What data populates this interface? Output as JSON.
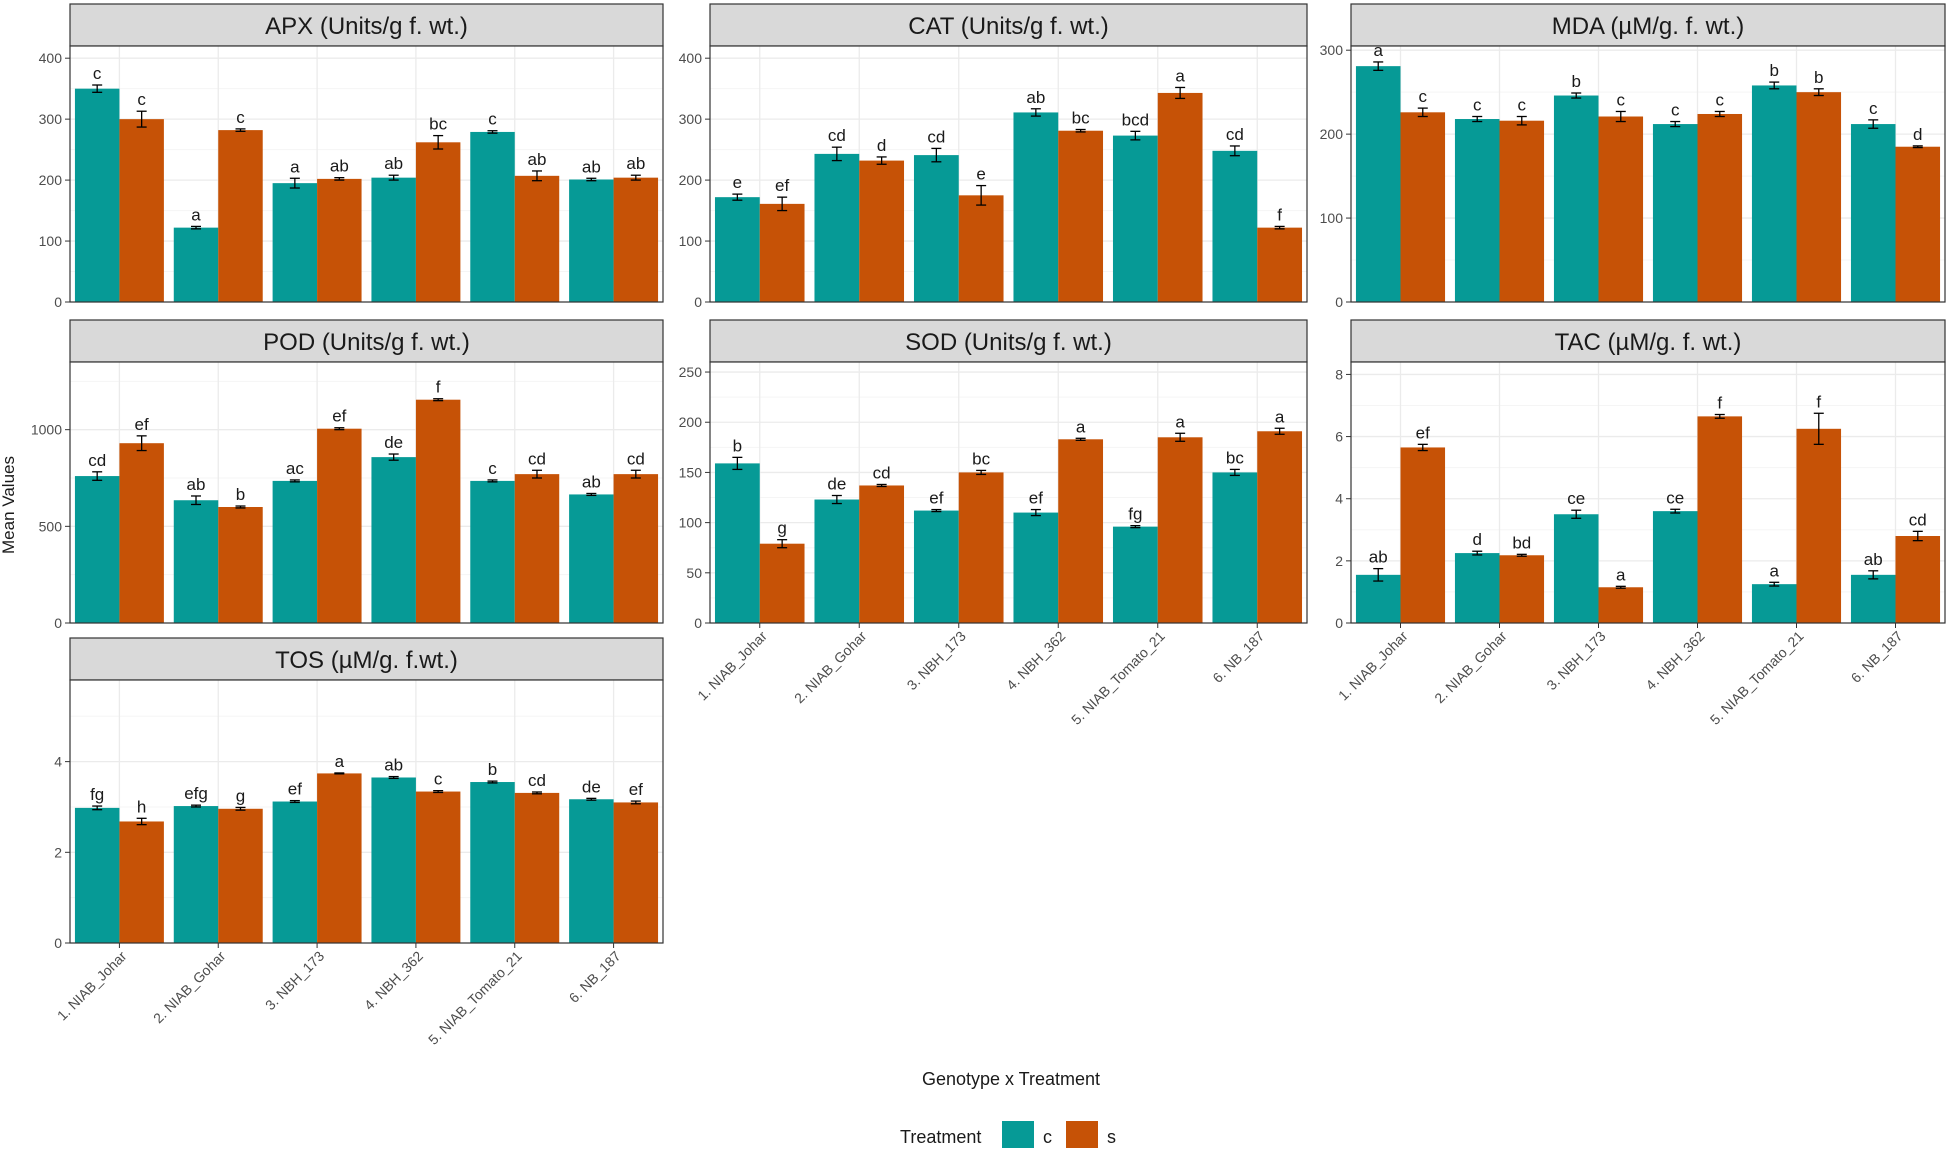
{
  "colors": {
    "c": "#069A96",
    "s": "#C65206",
    "strip_bg": "#D9D9D9",
    "panel_border": "#333333",
    "grid_major": "#EBEBEB",
    "grid_minor": "#F5F5F5",
    "axis_text": "#4D4D4D",
    "text": "#1A1A1A"
  },
  "chart_data": {
    "type": "bar",
    "ylabel": "Mean Values",
    "xlabel": "Genotype x Treatment",
    "categories": [
      "1. NIAB_Johar",
      "2. NIAB_Gohar",
      "3. NBH_173",
      "4. NBH_362",
      "5. NIAB_Tomato_21",
      "6. NB_187"
    ],
    "legend": {
      "title": "Treatment",
      "placement": "bottom",
      "items": [
        {
          "key": "c",
          "label": "c"
        },
        {
          "key": "s",
          "label": "s"
        }
      ]
    },
    "panels": [
      {
        "title": "APX (Units/g f. wt.)",
        "ylim": [
          0,
          420
        ],
        "yticks": [
          0,
          100,
          200,
          300,
          400
        ],
        "yminor": [
          50,
          150,
          250,
          350
        ],
        "series": [
          {
            "name": "c",
            "values": [
              350,
              122,
              195,
              204,
              279,
              201
            ],
            "errors": [
              6,
              2,
              8,
              4,
              2,
              2
            ],
            "letters": [
              "c",
              "a",
              "a",
              "ab",
              "c",
              "ab"
            ]
          },
          {
            "name": "s",
            "values": [
              300,
              282,
              202,
              262,
              207,
              204
            ],
            "errors": [
              13,
              2,
              2,
              11,
              8,
              4
            ],
            "letters": [
              "c",
              "c",
              "ab",
              "bc",
              "ab",
              "ab"
            ]
          }
        ]
      },
      {
        "title": "CAT (Units/g f. wt.)",
        "ylim": [
          0,
          420
        ],
        "yticks": [
          0,
          100,
          200,
          300,
          400
        ],
        "yminor": [
          50,
          150,
          250,
          350
        ],
        "series": [
          {
            "name": "c",
            "values": [
              172,
              243,
              241,
              311,
              273,
              248
            ],
            "errors": [
              5,
              11,
              11,
              6,
              7,
              8
            ],
            "letters": [
              "e",
              "cd",
              "cd",
              "ab",
              "bcd",
              "cd"
            ]
          },
          {
            "name": "s",
            "values": [
              161,
              232,
              175,
              281,
              343,
              122
            ],
            "errors": [
              11,
              6,
              16,
              2,
              9,
              2
            ],
            "letters": [
              "ef",
              "d",
              "e",
              "bc",
              "a",
              "f"
            ]
          }
        ]
      },
      {
        "title": "MDA (µM/g. f. wt.)",
        "ylim": [
          0,
          305
        ],
        "yticks": [
          0,
          100,
          200,
          300
        ],
        "yminor": [
          50,
          150,
          250
        ],
        "series": [
          {
            "name": "c",
            "values": [
              281,
              218,
              246,
              212,
              258,
              212
            ],
            "errors": [
              5,
              3,
              3,
              3,
              4,
              5
            ],
            "letters": [
              "a",
              "c",
              "b",
              "c",
              "b",
              "c"
            ]
          },
          {
            "name": "s",
            "values": [
              226,
              216,
              221,
              224,
              250,
              185
            ],
            "errors": [
              5,
              5,
              6,
              3,
              4,
              1
            ],
            "letters": [
              "c",
              "c",
              "c",
              "c",
              "b",
              "d"
            ]
          }
        ]
      },
      {
        "title": "POD (Units/g f. wt.)",
        "ylim": [
          0,
          1350
        ],
        "yticks": [
          0,
          500,
          1000
        ],
        "yminor": [
          250,
          750,
          1250
        ],
        "series": [
          {
            "name": "c",
            "values": [
              760,
              635,
              735,
              858,
              735,
              665
            ],
            "errors": [
              22,
              22,
              5,
              16,
              5,
              5
            ],
            "letters": [
              "cd",
              "ab",
              "ac",
              "de",
              "c",
              "ab"
            ]
          },
          {
            "name": "s",
            "values": [
              930,
              600,
              1005,
              1155,
              770,
              770
            ],
            "errors": [
              38,
              5,
              5,
              5,
              20,
              20
            ],
            "letters": [
              "ef",
              "b",
              "ef",
              "f",
              "cd",
              "cd"
            ]
          }
        ]
      },
      {
        "title": "SOD (Units/g f. wt.)",
        "ylim": [
          0,
          260
        ],
        "yticks": [
          0,
          50,
          100,
          150,
          200,
          250
        ],
        "yminor": [
          25,
          75,
          125,
          175,
          225
        ],
        "series": [
          {
            "name": "c",
            "values": [
              159,
              123,
              112,
              110,
              96,
              150
            ],
            "errors": [
              6,
              4,
              1,
              3,
              1,
              3
            ],
            "letters": [
              "b",
              "de",
              "ef",
              "ef",
              "fg",
              "bc"
            ]
          },
          {
            "name": "s",
            "values": [
              79,
              137,
              150,
              183,
              185,
              191
            ],
            "errors": [
              4,
              1,
              2,
              1,
              4,
              3
            ],
            "letters": [
              "g",
              "cd",
              "bc",
              "a",
              "a",
              "a"
            ]
          }
        ]
      },
      {
        "title": "TAC (µM/g. f. wt.)",
        "ylim": [
          0,
          8.4
        ],
        "yticks": [
          0,
          2,
          4,
          6,
          8
        ],
        "yminor": [
          1,
          3,
          5,
          7
        ],
        "series": [
          {
            "name": "c",
            "values": [
              1.55,
              2.25,
              3.5,
              3.6,
              1.25,
              1.55
            ],
            "errors": [
              0.2,
              0.06,
              0.13,
              0.06,
              0.06,
              0.13
            ],
            "letters": [
              "ab",
              "d",
              "ce",
              "ce",
              "a",
              "ab"
            ]
          },
          {
            "name": "s",
            "values": [
              5.65,
              2.18,
              1.15,
              6.65,
              6.25,
              2.8
            ],
            "errors": [
              0.1,
              0.03,
              0.03,
              0.06,
              0.5,
              0.15
            ],
            "letters": [
              "ef",
              "bd",
              "a",
              "f",
              "f",
              "cd"
            ]
          }
        ]
      },
      {
        "title": "TOS (µM/g. f.wt.)",
        "ylim": [
          0,
          5.8
        ],
        "yticks": [
          0,
          2,
          4
        ],
        "yminor": [
          1,
          3,
          5
        ],
        "series": [
          {
            "name": "c",
            "values": [
              2.98,
              3.02,
              3.12,
              3.65,
              3.55,
              3.17
            ],
            "errors": [
              0.04,
              0.02,
              0.02,
              0.02,
              0.02,
              0.02
            ],
            "letters": [
              "fg",
              "efg",
              "ef",
              "ab",
              "b",
              "de"
            ]
          },
          {
            "name": "s",
            "values": [
              2.68,
              2.96,
              3.74,
              3.34,
              3.31,
              3.1
            ],
            "errors": [
              0.07,
              0.03,
              0.01,
              0.02,
              0.02,
              0.03
            ],
            "letters": [
              "h",
              "g",
              "a",
              "c",
              "cd",
              "ef"
            ]
          }
        ]
      }
    ]
  }
}
